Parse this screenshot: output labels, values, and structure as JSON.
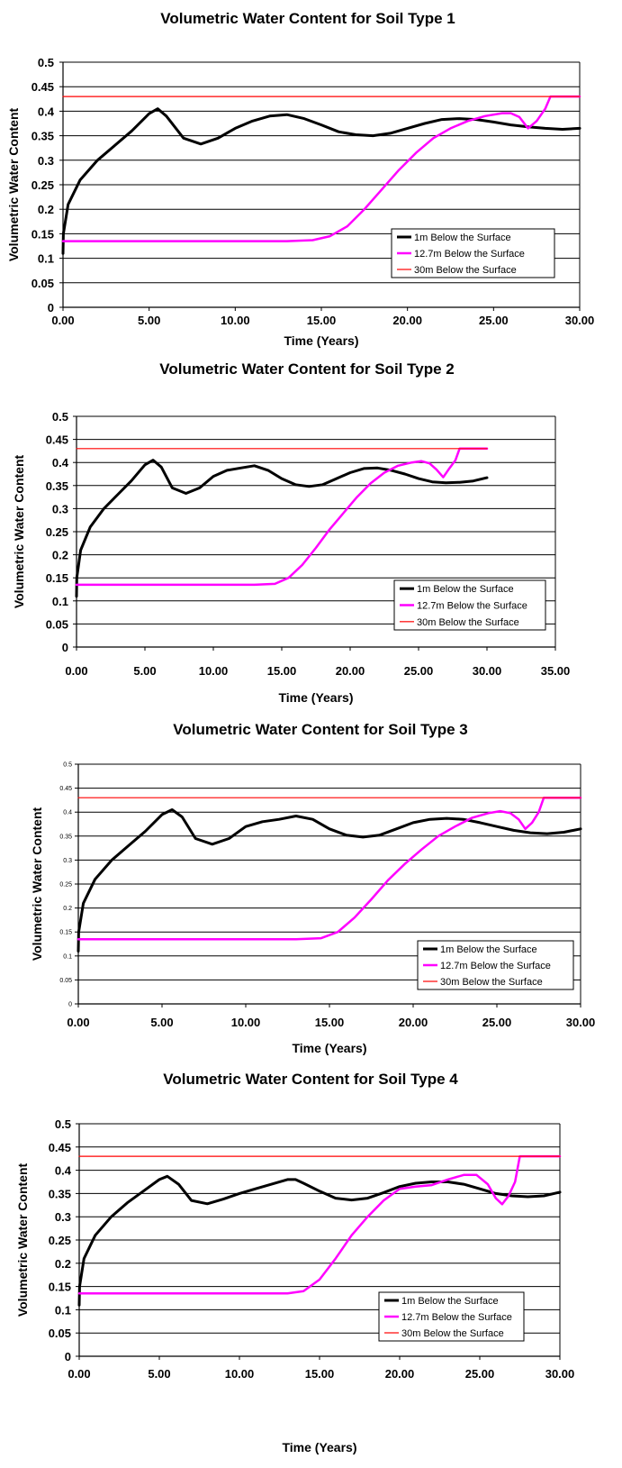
{
  "chart_data": [
    {
      "type": "line",
      "title": "Volumetric Water Content for Soil Type 1",
      "xlabel": "Time (Years)",
      "ylabel": "Volumetric Water Content",
      "xlim": [
        0,
        30
      ],
      "ylim": [
        0,
        0.5
      ],
      "x_ticks": [
        "0.00",
        "5.00",
        "10.00",
        "15.00",
        "20.00",
        "25.00",
        "30.00"
      ],
      "y_ticks": [
        "0",
        "0.05",
        "0.1",
        "0.15",
        "0.2",
        "0.25",
        "0.3",
        "0.35",
        "0.4",
        "0.45",
        "0.5"
      ],
      "grid": "horizontal",
      "legend_position": "bottom-right",
      "series": [
        {
          "name": "1m Below the Surface",
          "color": "#000000",
          "x": [
            0,
            0.02,
            0.3,
            1,
            2,
            3,
            4,
            5,
            5.5,
            6,
            7,
            8,
            9,
            10,
            11,
            12,
            13,
            14,
            15,
            16,
            17,
            18,
            19,
            20,
            21,
            22,
            23,
            24,
            25,
            26,
            27,
            28,
            29,
            30
          ],
          "y": [
            0.11,
            0.15,
            0.21,
            0.26,
            0.3,
            0.33,
            0.36,
            0.395,
            0.405,
            0.39,
            0.345,
            0.333,
            0.345,
            0.365,
            0.38,
            0.39,
            0.393,
            0.385,
            0.372,
            0.358,
            0.352,
            0.35,
            0.355,
            0.365,
            0.375,
            0.383,
            0.385,
            0.383,
            0.378,
            0.372,
            0.368,
            0.365,
            0.363,
            0.365
          ]
        },
        {
          "name": "12.7m Below the Surface",
          "color": "#ff00ff",
          "x": [
            0,
            13,
            14.5,
            15.5,
            16.5,
            17.5,
            18.5,
            19.5,
            20.5,
            21.5,
            22.5,
            23.5,
            24.5,
            25.5,
            26,
            26.5,
            27,
            27.5,
            28,
            28.3,
            30
          ],
          "y": [
            0.135,
            0.135,
            0.137,
            0.145,
            0.165,
            0.2,
            0.24,
            0.28,
            0.315,
            0.345,
            0.365,
            0.38,
            0.39,
            0.396,
            0.396,
            0.388,
            0.365,
            0.38,
            0.405,
            0.43,
            0.43
          ]
        },
        {
          "name": "30m Below the Surface",
          "color": "#ff0000",
          "x": [
            0,
            30
          ],
          "y": [
            0.43,
            0.43
          ]
        }
      ]
    },
    {
      "type": "line",
      "title": "Volumetric Water Content for Soil Type 2",
      "xlabel": "Time (Years)",
      "ylabel": "Volumetric Water Content",
      "xlim": [
        0,
        35
      ],
      "ylim": [
        0,
        0.5
      ],
      "x_ticks": [
        "0.00",
        "5.00",
        "10.00",
        "15.00",
        "20.00",
        "25.00",
        "30.00",
        "35.00"
      ],
      "y_ticks": [
        "0",
        "0.05",
        "0.1",
        "0.15",
        "0.2",
        "0.25",
        "0.3",
        "0.35",
        "0.4",
        "0.45",
        "0.5"
      ],
      "grid": "horizontal",
      "legend_position": "bottom-right",
      "series": [
        {
          "name": "1m Below the Surface",
          "color": "#000000",
          "x": [
            0,
            0.02,
            0.3,
            1,
            2,
            3,
            4,
            5,
            5.6,
            6.2,
            7,
            8,
            9,
            10,
            11,
            12,
            13,
            14,
            15,
            16,
            17,
            18,
            19,
            20,
            21,
            22,
            23,
            24,
            25,
            26,
            27,
            28,
            29,
            30
          ],
          "y": [
            0.11,
            0.15,
            0.21,
            0.26,
            0.3,
            0.33,
            0.36,
            0.395,
            0.405,
            0.39,
            0.345,
            0.333,
            0.345,
            0.37,
            0.383,
            0.388,
            0.393,
            0.383,
            0.365,
            0.352,
            0.348,
            0.352,
            0.365,
            0.378,
            0.387,
            0.388,
            0.383,
            0.375,
            0.365,
            0.358,
            0.356,
            0.357,
            0.36,
            0.367
          ]
        },
        {
          "name": "12.7m Below the Surface",
          "color": "#ff00ff",
          "x": [
            0,
            13,
            14.5,
            15.5,
            16.5,
            17.5,
            18.5,
            19.5,
            20.5,
            21.5,
            22.5,
            23.5,
            24.5,
            25.2,
            25.8,
            26.3,
            26.8,
            27.2,
            27.7,
            28,
            30
          ],
          "y": [
            0.135,
            0.135,
            0.137,
            0.15,
            0.178,
            0.215,
            0.255,
            0.29,
            0.325,
            0.355,
            0.378,
            0.393,
            0.4,
            0.403,
            0.398,
            0.385,
            0.368,
            0.385,
            0.405,
            0.43,
            0.43
          ]
        },
        {
          "name": "30m Below the Surface",
          "color": "#ff0000",
          "x": [
            0,
            30
          ],
          "y": [
            0.43,
            0.43
          ]
        }
      ]
    },
    {
      "type": "line",
      "title": "Volumetric Water Content for Soil Type 3",
      "xlabel": "Time (Years)",
      "ylabel": "Volumetric Water Content",
      "xlim": [
        0,
        30
      ],
      "ylim": [
        0,
        0.5
      ],
      "x_ticks": [
        "0.00",
        "5.00",
        "10.00",
        "15.00",
        "20.00",
        "25.00",
        "30.00"
      ],
      "y_ticks": [
        "0",
        "0.05",
        "0.1",
        "0.15",
        "0.2",
        "0.25",
        "0.3",
        "0.35",
        "0.4",
        "0.45",
        "0.5"
      ],
      "grid": "horizontal",
      "legend_position": "bottom-right",
      "series": [
        {
          "name": "1m Below the Surface",
          "color": "#000000",
          "x": [
            0,
            0.02,
            0.3,
            1,
            2,
            3,
            4,
            5,
            5.6,
            6.2,
            7,
            8,
            9,
            10,
            11,
            12,
            13,
            14,
            15,
            16,
            17,
            18,
            19,
            20,
            21,
            22,
            23,
            24,
            25,
            26,
            27,
            28,
            29,
            30
          ],
          "y": [
            0.11,
            0.15,
            0.21,
            0.26,
            0.3,
            0.33,
            0.36,
            0.395,
            0.405,
            0.39,
            0.345,
            0.333,
            0.345,
            0.37,
            0.38,
            0.385,
            0.392,
            0.385,
            0.365,
            0.352,
            0.348,
            0.352,
            0.365,
            0.378,
            0.385,
            0.387,
            0.385,
            0.378,
            0.37,
            0.362,
            0.357,
            0.355,
            0.358,
            0.365
          ]
        },
        {
          "name": "12.7m Below the Surface",
          "color": "#ff00ff",
          "x": [
            0,
            13,
            14.5,
            15.5,
            16.5,
            17.5,
            18.5,
            19.5,
            20.5,
            21.5,
            22.5,
            23.5,
            24.5,
            25.2,
            25.8,
            26.3,
            26.7,
            27.1,
            27.5,
            27.8,
            30
          ],
          "y": [
            0.135,
            0.135,
            0.137,
            0.15,
            0.18,
            0.218,
            0.258,
            0.292,
            0.322,
            0.35,
            0.37,
            0.388,
            0.398,
            0.402,
            0.398,
            0.385,
            0.365,
            0.378,
            0.4,
            0.43,
            0.43
          ]
        },
        {
          "name": "30m Below the Surface",
          "color": "#ff0000",
          "x": [
            0,
            30
          ],
          "y": [
            0.43,
            0.43
          ]
        }
      ]
    },
    {
      "type": "line",
      "title": "Volumetric Water Content for Soil Type 4",
      "xlabel": "Time (Years)",
      "ylabel": "Volumetric Water Content",
      "xlim": [
        0,
        30
      ],
      "ylim": [
        0,
        0.5
      ],
      "x_ticks": [
        "0.00",
        "5.00",
        "10.00",
        "15.00",
        "20.00",
        "25.00",
        "30.00"
      ],
      "y_ticks": [
        "0",
        "0.05",
        "0.1",
        "0.15",
        "0.2",
        "0.25",
        "0.3",
        "0.35",
        "0.4",
        "0.45",
        "0.5"
      ],
      "grid": "horizontal",
      "legend_position": "bottom-right",
      "series": [
        {
          "name": "1m Below the Surface",
          "color": "#000000",
          "x": [
            0,
            0.02,
            0.3,
            1,
            2,
            3,
            4,
            5,
            5.5,
            6.2,
            7,
            8,
            9,
            10,
            11,
            12,
            13,
            13.5,
            14,
            15,
            16,
            17,
            18,
            19,
            20,
            21,
            22,
            23,
            24,
            25,
            26,
            27,
            28,
            29,
            30
          ],
          "y": [
            0.11,
            0.15,
            0.21,
            0.26,
            0.3,
            0.33,
            0.355,
            0.38,
            0.387,
            0.37,
            0.335,
            0.328,
            0.338,
            0.35,
            0.36,
            0.37,
            0.38,
            0.38,
            0.372,
            0.355,
            0.34,
            0.336,
            0.34,
            0.352,
            0.365,
            0.372,
            0.375,
            0.375,
            0.37,
            0.36,
            0.35,
            0.345,
            0.343,
            0.345,
            0.353
          ]
        },
        {
          "name": "12.7m Below the Surface",
          "color": "#ff00ff",
          "x": [
            0,
            13,
            14,
            15,
            16,
            17,
            18,
            19,
            20,
            21,
            22,
            23,
            24,
            24.8,
            25.5,
            26,
            26.4,
            26.8,
            27.2,
            27.5,
            30
          ],
          "y": [
            0.135,
            0.135,
            0.14,
            0.165,
            0.21,
            0.26,
            0.3,
            0.335,
            0.36,
            0.365,
            0.368,
            0.38,
            0.39,
            0.39,
            0.37,
            0.34,
            0.327,
            0.345,
            0.375,
            0.43,
            0.43
          ]
        },
        {
          "name": "30m Below the Surface",
          "color": "#ff0000",
          "x": [
            0,
            30
          ],
          "y": [
            0.43,
            0.43
          ]
        }
      ]
    }
  ]
}
